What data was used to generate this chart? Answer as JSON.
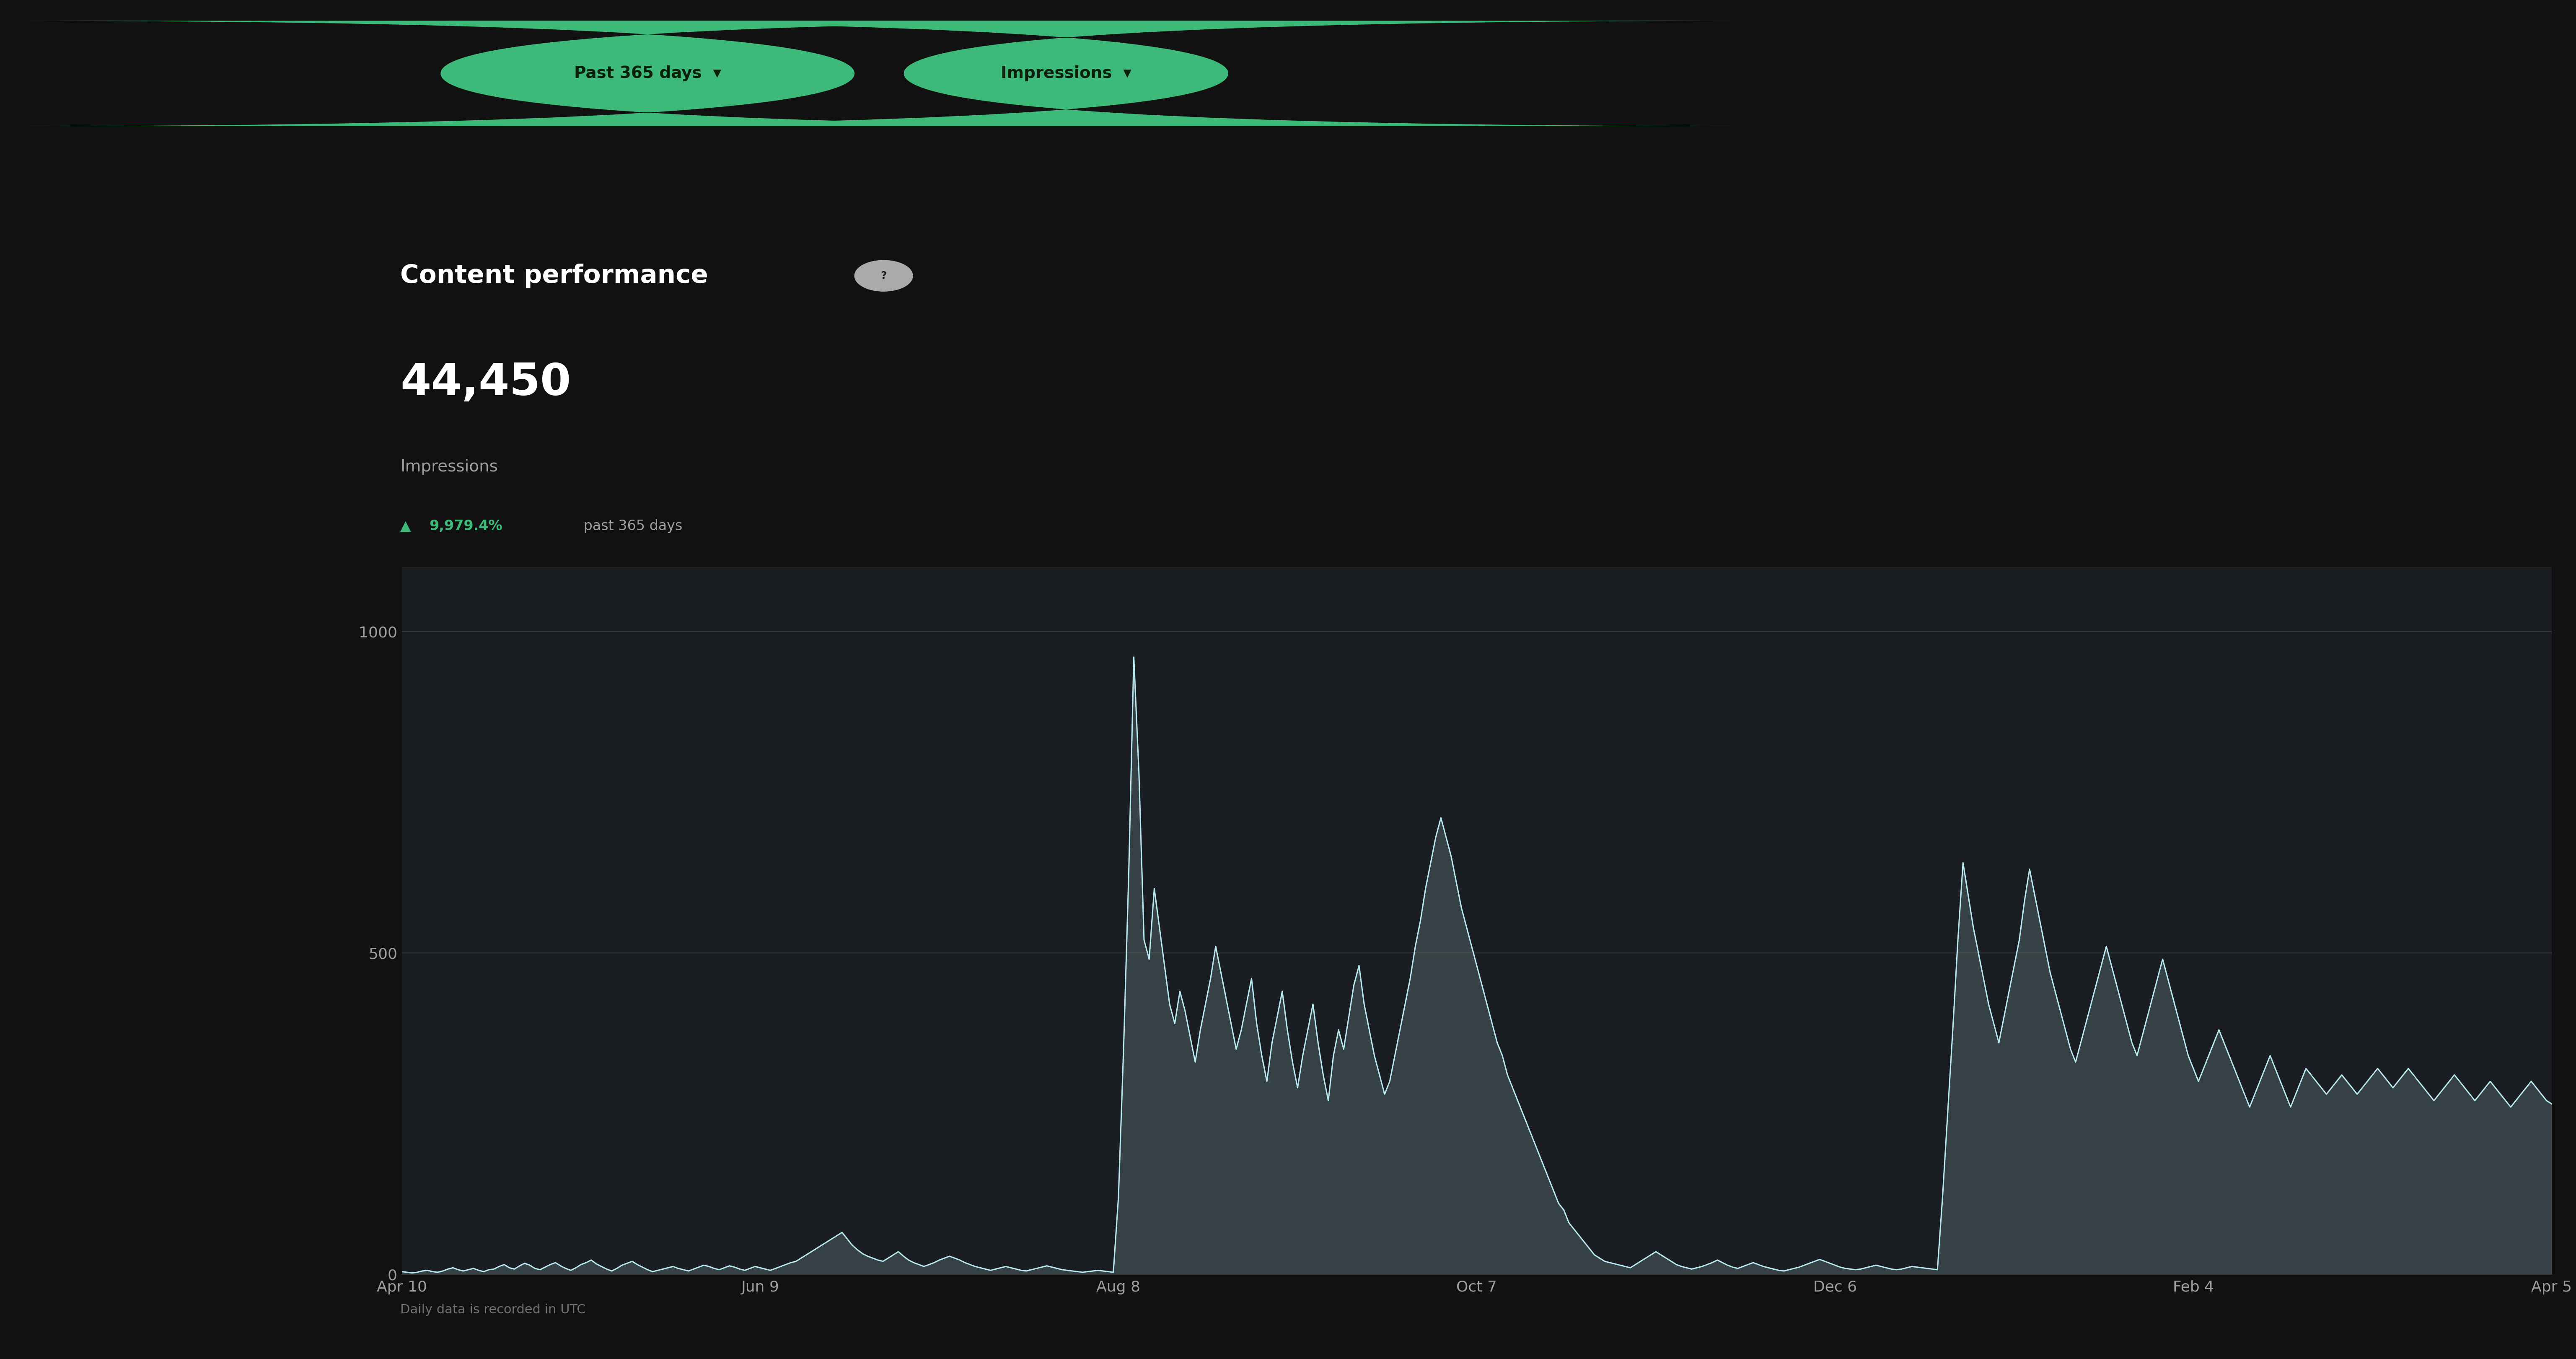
{
  "bg_outer": "#111111",
  "bg_top_panel": "#1e2328",
  "bg_main_panel": "#1a1d21",
  "btn_bg": "#3dba7a",
  "btn_text_color": "#0d1f0d",
  "btn1_text": "Past 365 days  ▾",
  "btn2_text": "Impressions  ▾",
  "title_text": "Content performance",
  "title_color": "#ffffff",
  "big_number": "44,450",
  "big_number_color": "#ffffff",
  "metric_label": "Impressions",
  "metric_label_color": "#9e9e9e",
  "growth_arrow": "▲",
  "growth_pct": "9,979.4%",
  "growth_color": "#3dba7a",
  "growth_suffix": " past 365 days",
  "growth_suffix_color": "#9e9e9e",
  "yticks": [
    0,
    500,
    1000
  ],
  "ytick_color": "#9e9e9e",
  "xtick_labels": [
    "Apr 10",
    "Jun 9",
    "Aug 8",
    "Oct 7",
    "Dec 6",
    "Feb 4",
    "Apr 5"
  ],
  "xtick_color": "#9e9e9e",
  "grid_color": "#3a3a3a",
  "line_color": "#b8e8f0",
  "fill_color": "#b8e8f0",
  "footer_text": "Daily data is recorded in UTC",
  "footer_color": "#707070",
  "y_values": [
    4,
    3,
    2,
    3,
    5,
    6,
    4,
    3,
    5,
    8,
    10,
    7,
    5,
    7,
    9,
    6,
    4,
    7,
    8,
    12,
    15,
    10,
    8,
    13,
    17,
    14,
    9,
    7,
    11,
    15,
    18,
    13,
    9,
    6,
    10,
    15,
    18,
    22,
    16,
    12,
    8,
    5,
    9,
    14,
    17,
    20,
    15,
    11,
    7,
    4,
    6,
    8,
    10,
    12,
    9,
    7,
    5,
    8,
    11,
    14,
    12,
    9,
    7,
    10,
    13,
    11,
    8,
    6,
    9,
    12,
    10,
    8,
    6,
    9,
    12,
    15,
    18,
    20,
    25,
    30,
    35,
    40,
    45,
    50,
    55,
    60,
    65,
    55,
    45,
    38,
    32,
    28,
    25,
    22,
    20,
    25,
    30,
    35,
    28,
    22,
    18,
    15,
    12,
    15,
    18,
    22,
    25,
    28,
    25,
    22,
    18,
    15,
    12,
    10,
    8,
    6,
    8,
    10,
    12,
    10,
    8,
    6,
    5,
    7,
    9,
    11,
    13,
    11,
    9,
    7,
    6,
    5,
    4,
    3,
    4,
    5,
    6,
    5,
    4,
    3,
    120,
    350,
    620,
    960,
    780,
    520,
    490,
    600,
    540,
    480,
    420,
    390,
    440,
    410,
    370,
    330,
    380,
    420,
    460,
    510,
    470,
    430,
    390,
    350,
    380,
    420,
    460,
    390,
    340,
    300,
    360,
    400,
    440,
    380,
    330,
    290,
    340,
    380,
    420,
    360,
    310,
    270,
    340,
    380,
    350,
    400,
    450,
    480,
    420,
    380,
    340,
    310,
    280,
    300,
    340,
    380,
    420,
    460,
    510,
    550,
    600,
    640,
    680,
    710,
    680,
    650,
    610,
    570,
    540,
    510,
    480,
    450,
    420,
    390,
    360,
    340,
    310,
    290,
    270,
    250,
    230,
    210,
    190,
    170,
    150,
    130,
    110,
    100,
    80,
    70,
    60,
    50,
    40,
    30,
    25,
    20,
    18,
    16,
    14,
    12,
    10,
    15,
    20,
    25,
    30,
    35,
    30,
    25,
    20,
    15,
    12,
    10,
    8,
    10,
    12,
    15,
    18,
    22,
    18,
    14,
    11,
    9,
    12,
    15,
    18,
    15,
    12,
    10,
    8,
    6,
    5,
    7,
    9,
    11,
    14,
    17,
    20,
    23,
    20,
    17,
    14,
    11,
    9,
    8,
    7,
    8,
    10,
    12,
    14,
    12,
    10,
    8,
    7,
    8,
    10,
    12,
    11,
    10,
    9,
    8,
    7,
    120,
    250,
    380,
    520,
    640,
    590,
    540,
    500,
    460,
    420,
    390,
    360,
    400,
    440,
    480,
    520,
    580,
    630,
    590,
    550,
    510,
    470,
    440,
    410,
    380,
    350,
    330,
    360,
    390,
    420,
    450,
    480,
    510,
    480,
    450,
    420,
    390,
    360,
    340,
    370,
    400,
    430,
    460,
    490,
    460,
    430,
    400,
    370,
    340,
    320,
    300,
    320,
    340,
    360,
    380,
    360,
    340,
    320,
    300,
    280,
    260,
    280,
    300,
    320,
    340,
    320,
    300,
    280,
    260,
    280,
    300,
    320,
    310,
    300,
    290,
    280,
    290,
    300,
    310,
    300,
    290,
    280,
    290,
    300,
    310,
    320,
    310,
    300,
    290,
    300,
    310,
    320,
    310,
    300,
    290,
    280,
    270,
    280,
    290,
    300,
    310,
    300,
    290,
    280,
    270,
    280,
    290,
    300,
    290,
    280,
    270,
    260,
    270,
    280,
    290,
    300,
    290,
    280,
    270,
    265
  ]
}
